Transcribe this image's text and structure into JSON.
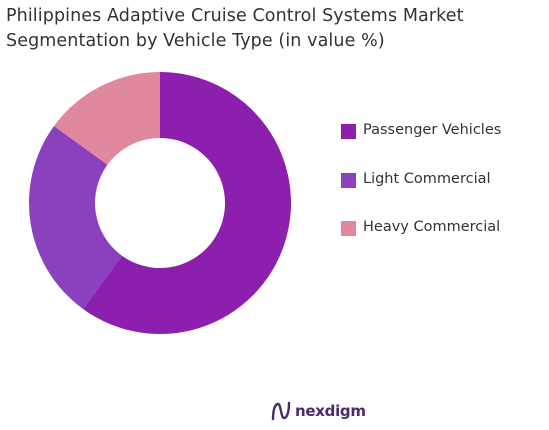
{
  "chart_data": {
    "type": "pie",
    "donut": true,
    "title_lines": [
      "Philippines Adaptive Cruise Control Systems Market",
      "Segmentation by Vehicle Type (in value %)"
    ],
    "categories": [
      "Passenger Vehicles",
      "Light Commercial",
      "Heavy Commercial"
    ],
    "values": [
      60,
      25,
      15
    ],
    "unit": "%",
    "colors": [
      "#8c1fad",
      "#8b40bd",
      "#e0899e"
    ],
    "legend_position": "right"
  },
  "brand": {
    "name": "nexdigm",
    "color": "#4a2a6e",
    "logo_icon": "nexdigm-logo-icon"
  }
}
